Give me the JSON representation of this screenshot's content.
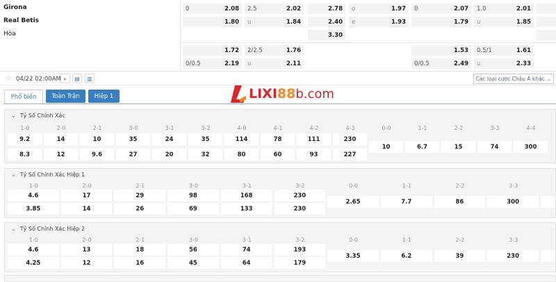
{
  "match": {
    "home": "Girona",
    "away": "Real Betis",
    "draw": "Hòa"
  },
  "odds_rows": [
    [
      [
        "0",
        "2.08"
      ],
      [
        "2.5",
        "2.02"
      ],
      [
        "",
        "2.78"
      ],
      [
        "o",
        "1.97"
      ],
      [
        "0",
        "2.07"
      ],
      [
        "1.0",
        "2.01"
      ],
      [
        "",
        ""
      ]
    ],
    [
      [
        "",
        "1.80"
      ],
      [
        "u",
        "1.84"
      ],
      [
        "",
        "2.40"
      ],
      [
        "e",
        "1.93"
      ],
      [
        "",
        "1.79"
      ],
      [
        "u",
        "1.85"
      ],
      [
        "",
        ""
      ]
    ],
    [
      null,
      null,
      [
        "",
        "3.30"
      ],
      null,
      null,
      null,
      [
        "",
        ""
      ]
    ],
    [
      [
        "",
        "1.72"
      ],
      [
        "2/2.5",
        "1.76"
      ],
      null,
      null,
      [
        "",
        "1.53"
      ],
      [
        "0.5/1",
        "1.61"
      ],
      null
    ],
    [
      [
        "0/0.5",
        "2.19"
      ],
      [
        "u",
        "2.11"
      ],
      null,
      null,
      [
        "0/0.5",
        "2.49"
      ],
      [
        "u",
        "2.33"
      ],
      null
    ]
  ],
  "toolbar": {
    "datetime": "04/22 02:00AM",
    "other_bets": "Các loại cược Châu Á khác"
  },
  "tabs": [
    "Phổ biến",
    "Toàn Trận",
    "Hiệp 1"
  ],
  "logo": {
    "text": "LIXI88b.com",
    "brand": "LIXI",
    "num": "88",
    "suffix": "b.com"
  },
  "sections": [
    {
      "title": "Tỷ Số Chính Xác",
      "wins": [
        "1-0",
        "2-0",
        "2-1",
        "3-0",
        "3-1",
        "3-2",
        "4-0",
        "4-1",
        "4-2",
        "4-3"
      ],
      "home": [
        "9.2",
        "14",
        "10",
        "35",
        "24",
        "35",
        "114",
        "78",
        "111",
        "230"
      ],
      "away": [
        "8.3",
        "12",
        "9.6",
        "27",
        "20",
        "32",
        "80",
        "60",
        "93",
        "227"
      ],
      "draws": [
        "0-0",
        "1-1",
        "2-2",
        "3-3",
        "4-4"
      ],
      "draw_odds": [
        "10",
        "6.7",
        "15",
        "74",
        "300"
      ]
    },
    {
      "title": "Tỷ Số Chính Xác Hiệp 1",
      "wins": [
        "1-0",
        "2-0",
        "2-1",
        "3-0",
        "3-1",
        "3-2"
      ],
      "home": [
        "4.6",
        "17",
        "29",
        "98",
        "168",
        "230"
      ],
      "away": [
        "3.85",
        "14",
        "26",
        "69",
        "133",
        "230"
      ],
      "draws": [
        "0-0",
        "1-1",
        "2-2",
        "3-3"
      ],
      "draw_odds": [
        "2.65",
        "7.7",
        "86",
        "300"
      ]
    },
    {
      "title": "Tỷ Số Chính Xác Hiệp 2",
      "wins": [
        "1-0",
        "2-0",
        "2-1",
        "3-0",
        "3-1",
        "3-2"
      ],
      "home": [
        "4.6",
        "13",
        "18",
        "56",
        "74",
        "193"
      ],
      "away": [
        "4.25",
        "12",
        "16",
        "45",
        "64",
        "179"
      ],
      "draws": [
        "0-0",
        "1-1",
        "2-2",
        "3-3"
      ],
      "draw_odds": [
        "3.35",
        "6.2",
        "39",
        "230"
      ]
    }
  ],
  "colors": {
    "tab_active": "#3a7ebf",
    "logo_red": "#d8262a",
    "logo_orange": "#f08a24"
  }
}
